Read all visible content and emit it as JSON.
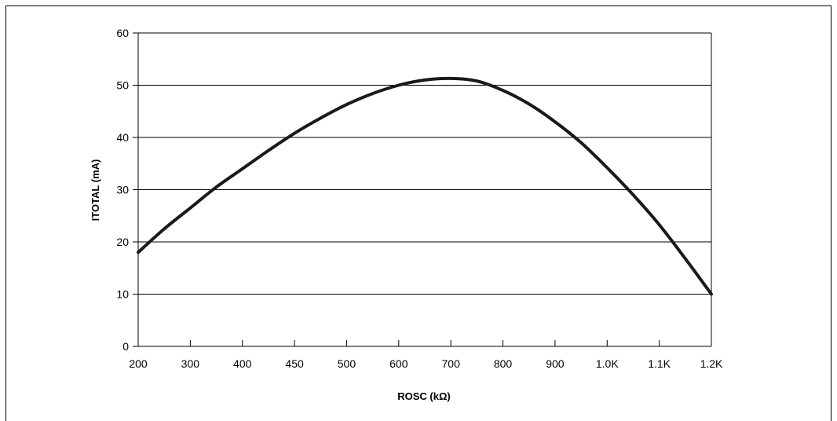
{
  "chart_data": {
    "type": "line",
    "title": "",
    "xlabel": "ROSC (kΩ)",
    "ylabel": "ITOTAL (mA)",
    "x_tick_labels": [
      "200",
      "300",
      "400",
      "450",
      "500",
      "600",
      "700",
      "800",
      "900",
      "1.0K",
      "1.1K",
      "1.2K"
    ],
    "y_tick_labels": [
      "0",
      "10",
      "20",
      "30",
      "40",
      "50",
      "60"
    ],
    "ylim": [
      0,
      60
    ],
    "grid": "horizontal",
    "series": [
      {
        "x_tick_position": [
          0,
          0.5,
          1,
          1.5,
          2,
          2.5,
          3,
          3.5,
          4,
          4.5,
          5,
          5.5,
          6,
          6.5,
          7,
          7.5,
          8,
          8.5,
          9,
          9.5,
          10,
          10.5,
          11
        ],
        "y": [
          18,
          22.5,
          26.5,
          30.5,
          34,
          37.5,
          40.8,
          43.7,
          46.3,
          48.4,
          50,
          51,
          51.3,
          50.8,
          49,
          46.4,
          43,
          39,
          34.2,
          29,
          23.3,
          16.8,
          10
        ]
      }
    ]
  }
}
